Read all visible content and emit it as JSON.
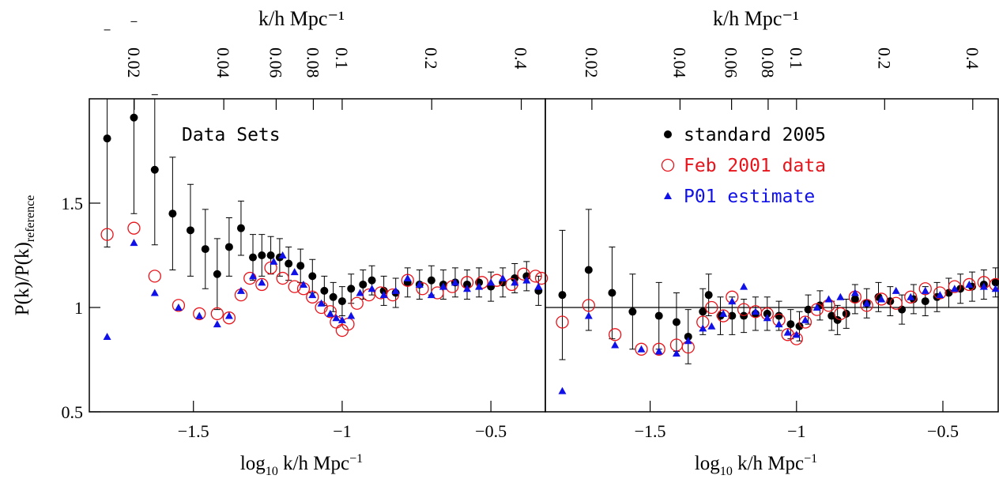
{
  "chart_data": [
    {
      "type": "scatter",
      "xlabel": [
        "log",
        "10",
        " k/h Mpc",
        "−1"
      ],
      "x2label": "k/h Mpc⁻¹",
      "ylabel": [
        "P(k)/P(k)",
        "reference"
      ],
      "annotation": "Data Sets",
      "xlim": [
        -1.85,
        -0.317
      ],
      "ylim": [
        0.5,
        2.0
      ],
      "xticks": [
        {
          "value": -1.5,
          "label": "−1.5"
        },
        {
          "value": -1,
          "label": "−1"
        },
        {
          "value": -0.5,
          "label": "−0.5"
        }
      ],
      "yticks": [
        0.5,
        1,
        1.5
      ],
      "x2scale": "log",
      "x2ticks": [
        0.02,
        0.04,
        0.06,
        0.08,
        0.1,
        0.2,
        0.4
      ],
      "series": [
        {
          "color": "#000000",
          "marker": "filled-circle",
          "x": [
            -1.79,
            -1.7,
            -1.63,
            -1.57,
            -1.51,
            -1.46,
            -1.42,
            -1.38,
            -1.34,
            -1.3,
            -1.27,
            -1.24,
            -1.21,
            -1.18,
            -1.14,
            -1.1,
            -1.06,
            -1.03,
            -1.0,
            -0.97,
            -0.93,
            -0.9,
            -0.86,
            -0.82,
            -0.78,
            -0.74,
            -0.7,
            -0.66,
            -0.62,
            -0.58,
            -0.54,
            -0.5,
            -0.46,
            -0.42,
            -0.38,
            -0.34
          ],
          "values": [
            1.81,
            1.91,
            1.66,
            1.45,
            1.37,
            1.28,
            1.16,
            1.29,
            1.38,
            1.24,
            1.25,
            1.25,
            1.24,
            1.21,
            1.2,
            1.15,
            1.08,
            1.05,
            1.03,
            1.09,
            1.11,
            1.13,
            1.08,
            1.07,
            1.12,
            1.11,
            1.13,
            1.11,
            1.12,
            1.11,
            1.12,
            1.1,
            1.12,
            1.14,
            1.15,
            1.08
          ],
          "errors": [
            0.52,
            0.46,
            0.36,
            0.27,
            0.22,
            0.19,
            0.17,
            0.14,
            0.13,
            0.11,
            0.1,
            0.09,
            0.09,
            0.08,
            0.08,
            0.08,
            0.07,
            0.07,
            0.07,
            0.07,
            0.07,
            0.07,
            0.07,
            0.07,
            0.07,
            0.07,
            0.07,
            0.07,
            0.07,
            0.07,
            0.07,
            0.07,
            0.07,
            0.07,
            0.07,
            0.07
          ]
        },
        {
          "color": "#e8141b",
          "marker": "open-circle",
          "x": [
            -1.79,
            -1.7,
            -1.63,
            -1.55,
            -1.48,
            -1.42,
            -1.38,
            -1.34,
            -1.31,
            -1.27,
            -1.24,
            -1.2,
            -1.16,
            -1.13,
            -1.1,
            -1.07,
            -1.04,
            -1.02,
            -1.0,
            -0.98,
            -0.95,
            -0.91,
            -0.87,
            -0.83,
            -0.78,
            -0.73,
            -0.68,
            -0.63,
            -0.58,
            -0.53,
            -0.48,
            -0.43,
            -0.39,
            -0.35,
            -0.33
          ],
          "values": [
            1.35,
            1.38,
            1.15,
            1.01,
            0.97,
            0.97,
            0.95,
            1.06,
            1.14,
            1.11,
            1.19,
            1.14,
            1.1,
            1.09,
            1.05,
            1.0,
            0.98,
            0.93,
            0.89,
            0.92,
            1.02,
            1.06,
            1.07,
            1.06,
            1.13,
            1.09,
            1.07,
            1.1,
            1.12,
            1.12,
            1.13,
            1.11,
            1.16,
            1.15,
            1.14
          ]
        },
        {
          "color": "#1010e8",
          "marker": "triangle",
          "x": [
            -1.79,
            -1.7,
            -1.63,
            -1.55,
            -1.48,
            -1.42,
            -1.38,
            -1.34,
            -1.3,
            -1.27,
            -1.23,
            -1.2,
            -1.16,
            -1.13,
            -1.1,
            -1.07,
            -1.04,
            -1.02,
            -1.0,
            -0.97,
            -0.94,
            -0.9,
            -0.86,
            -0.82,
            -0.78,
            -0.74,
            -0.7,
            -0.66,
            -0.62,
            -0.58,
            -0.54,
            -0.5,
            -0.46,
            -0.42,
            -0.38,
            -0.34
          ],
          "values": [
            0.86,
            1.31,
            1.07,
            1.0,
            0.96,
            0.92,
            0.96,
            1.08,
            1.15,
            1.12,
            1.22,
            1.25,
            1.17,
            1.11,
            1.06,
            1.02,
            0.97,
            0.95,
            0.94,
            0.96,
            1.07,
            1.09,
            1.06,
            1.08,
            1.14,
            1.11,
            1.06,
            1.1,
            1.12,
            1.09,
            1.1,
            1.12,
            1.14,
            1.12,
            1.13,
            1.1
          ]
        }
      ]
    },
    {
      "type": "scatter",
      "xlabel": [
        "log",
        "10",
        " k/h Mpc",
        "−1"
      ],
      "x2label": "k/h Mpc⁻¹",
      "legend": "top-left",
      "reference_line": 1,
      "xlim": [
        -1.858,
        -0.311
      ],
      "ylim": [
        0.5,
        2.0
      ],
      "xticks": [
        {
          "value": -1.5,
          "label": "−1.5"
        },
        {
          "value": -1,
          "label": "−1"
        },
        {
          "value": -0.5,
          "label": "−0.5"
        }
      ],
      "x2scale": "log",
      "x2ticks": [
        0.02,
        0.04,
        0.06,
        0.08,
        0.1,
        0.2,
        0.4
      ],
      "series": [
        {
          "name": "standard 2005",
          "color": "#000000",
          "marker": "filled-circle",
          "x": [
            -1.8,
            -1.71,
            -1.63,
            -1.56,
            -1.47,
            -1.41,
            -1.37,
            -1.32,
            -1.3,
            -1.26,
            -1.22,
            -1.18,
            -1.14,
            -1.1,
            -1.06,
            -1.02,
            -0.99,
            -0.96,
            -0.92,
            -0.88,
            -0.86,
            -0.83,
            -0.8,
            -0.76,
            -0.72,
            -0.68,
            -0.64,
            -0.6,
            -0.56,
            -0.52,
            -0.48,
            -0.44,
            -0.4,
            -0.36,
            -0.32
          ],
          "values": [
            1.06,
            1.18,
            1.07,
            0.98,
            0.96,
            0.93,
            0.86,
            0.98,
            1.06,
            0.96,
            0.96,
            0.96,
            0.97,
            0.97,
            0.96,
            0.92,
            0.91,
            0.99,
            1.01,
            0.96,
            0.94,
            0.97,
            1.04,
            1.02,
            1.05,
            1.03,
            0.99,
            1.04,
            1.03,
            1.05,
            1.07,
            1.09,
            1.1,
            1.11,
            1.12
          ],
          "errors": [
            0.31,
            0.29,
            0.22,
            0.18,
            0.16,
            0.14,
            0.13,
            0.11,
            0.1,
            0.09,
            0.09,
            0.08,
            0.08,
            0.08,
            0.07,
            0.07,
            0.07,
            0.07,
            0.07,
            0.07,
            0.07,
            0.07,
            0.07,
            0.07,
            0.07,
            0.07,
            0.07,
            0.07,
            0.07,
            0.07,
            0.07,
            0.07,
            0.07,
            0.07,
            0.07
          ]
        },
        {
          "name": "Feb 2001 data",
          "color": "#e8141b",
          "marker": "open-circle",
          "x": [
            -1.8,
            -1.71,
            -1.62,
            -1.53,
            -1.47,
            -1.41,
            -1.37,
            -1.32,
            -1.29,
            -1.25,
            -1.22,
            -1.18,
            -1.14,
            -1.1,
            -1.06,
            -1.03,
            -1.0,
            -0.97,
            -0.93,
            -0.89,
            -0.85,
            -0.8,
            -0.76,
            -0.71,
            -0.66,
            -0.61,
            -0.56,
            -0.51,
            -0.46,
            -0.41,
            -0.36,
            -0.32
          ],
          "values": [
            0.93,
            1.01,
            0.87,
            0.8,
            0.8,
            0.82,
            0.81,
            0.93,
            1.0,
            0.96,
            1.05,
            0.99,
            0.98,
            0.97,
            0.94,
            0.87,
            0.85,
            0.93,
            0.99,
            1.01,
            0.97,
            1.05,
            1.01,
            1.04,
            1.02,
            1.05,
            1.09,
            1.07,
            1.1,
            1.11,
            1.12,
            1.11
          ]
        },
        {
          "name": "P01 estimate",
          "color": "#1010e8",
          "marker": "triangle",
          "x": [
            -1.8,
            -1.71,
            -1.62,
            -1.53,
            -1.47,
            -1.41,
            -1.37,
            -1.32,
            -1.29,
            -1.25,
            -1.22,
            -1.18,
            -1.14,
            -1.1,
            -1.06,
            -1.03,
            -1.0,
            -0.97,
            -0.93,
            -0.89,
            -0.85,
            -0.8,
            -0.76,
            -0.71,
            -0.66,
            -0.61,
            -0.56,
            -0.51,
            -0.46,
            -0.41,
            -0.36,
            -0.32
          ],
          "values": [
            0.6,
            0.96,
            0.82,
            0.8,
            0.79,
            0.78,
            0.84,
            0.9,
            0.91,
            0.97,
            1.03,
            1.1,
            0.98,
            0.95,
            0.92,
            0.88,
            0.87,
            0.94,
            1.0,
            1.04,
            1.05,
            1.07,
            1.02,
            1.04,
            1.08,
            1.05,
            1.08,
            1.06,
            1.09,
            1.11,
            1.1,
            1.09
          ]
        }
      ]
    }
  ]
}
